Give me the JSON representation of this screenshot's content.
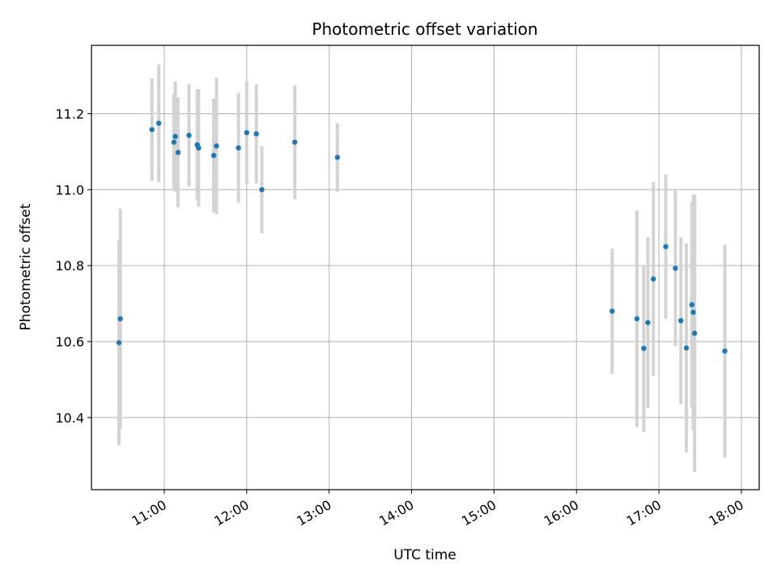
{
  "chart_data": {
    "type": "scatter",
    "title": "Photometric offset variation",
    "xlabel": "UTC time",
    "ylabel": "Photometric offset",
    "x_ticks": [
      "11:00",
      "12:00",
      "13:00",
      "14:00",
      "15:00",
      "16:00",
      "17:00",
      "18:00"
    ],
    "y_ticks": [
      "10.4",
      "10.6",
      "10.8",
      "11.0",
      "11.2"
    ],
    "xlim": [
      "10:07",
      "18:13"
    ],
    "ylim": [
      10.21,
      11.38
    ],
    "grid": true,
    "point_color": "#1f77b4",
    "errorbar_color": "#d3d3d3",
    "points": [
      {
        "t": "10:27",
        "y": 10.597,
        "err": 0.27
      },
      {
        "t": "10:28",
        "y": 10.66,
        "err": 0.29
      },
      {
        "t": "10:51",
        "y": 11.158,
        "err": 0.135
      },
      {
        "t": "10:56",
        "y": 11.175,
        "err": 0.155
      },
      {
        "t": "11:07",
        "y": 11.125,
        "err": 0.125
      },
      {
        "t": "11:08",
        "y": 11.14,
        "err": 0.145
      },
      {
        "t": "11:10",
        "y": 11.098,
        "err": 0.145
      },
      {
        "t": "11:18",
        "y": 11.143,
        "err": 0.135
      },
      {
        "t": "11:24",
        "y": 11.118,
        "err": 0.145
      },
      {
        "t": "11:25",
        "y": 11.11,
        "err": 0.155
      },
      {
        "t": "11:36",
        "y": 11.09,
        "err": 0.15
      },
      {
        "t": "11:38",
        "y": 11.115,
        "err": 0.18
      },
      {
        "t": "11:54",
        "y": 11.11,
        "err": 0.145
      },
      {
        "t": "12:00",
        "y": 11.15,
        "err": 0.135
      },
      {
        "t": "12:07",
        "y": 11.147,
        "err": 0.13
      },
      {
        "t": "12:11",
        "y": 11.0,
        "err": 0.115
      },
      {
        "t": "12:35",
        "y": 11.125,
        "err": 0.15
      },
      {
        "t": "13:06",
        "y": 11.085,
        "err": 0.09
      },
      {
        "t": "16:26",
        "y": 10.68,
        "err": 0.165
      },
      {
        "t": "16:44",
        "y": 10.66,
        "err": 0.285
      },
      {
        "t": "16:49",
        "y": 10.582,
        "err": 0.22
      },
      {
        "t": "16:52",
        "y": 10.65,
        "err": 0.225
      },
      {
        "t": "16:56",
        "y": 10.765,
        "err": 0.255
      },
      {
        "t": "17:05",
        "y": 10.85,
        "err": 0.19
      },
      {
        "t": "17:12",
        "y": 10.793,
        "err": 0.205
      },
      {
        "t": "17:16",
        "y": 10.655,
        "err": 0.22
      },
      {
        "t": "17:20",
        "y": 10.583,
        "err": 0.275
      },
      {
        "t": "17:24",
        "y": 10.697,
        "err": 0.27
      },
      {
        "t": "17:25",
        "y": 10.677,
        "err": 0.31
      },
      {
        "t": "17:26",
        "y": 10.622,
        "err": 0.365
      },
      {
        "t": "17:48",
        "y": 10.575,
        "err": 0.28
      }
    ]
  }
}
